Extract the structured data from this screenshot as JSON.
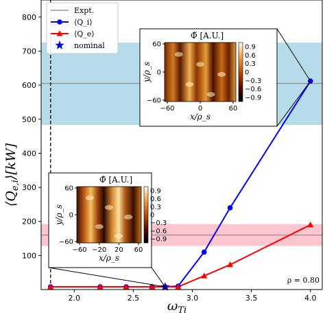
{
  "chart_data": {
    "type": "line",
    "ylabel": "⟨Q_e,i⟩[kW]",
    "xlabel": "ω_Ti",
    "xlim": [
      1.72,
      4.1
    ],
    "ylim": [
      0,
      850
    ],
    "x_ticks": [
      2.0,
      2.5,
      3.0,
      3.5,
      4.0
    ],
    "x_tick_labels": [
      "2.0",
      "2.5",
      "3.0",
      "3.5",
      "4.0"
    ],
    "y_ticks": [
      100,
      200,
      300,
      400,
      500,
      600,
      700,
      800
    ],
    "y_tick_labels": [
      "100",
      "200",
      "300",
      "400",
      "500",
      "600",
      "700",
      "800"
    ],
    "annotation": "ρ = 0.80",
    "nominal_x_line": 1.8,
    "bands": [
      {
        "name": "Expt. Qi",
        "center": 605,
        "low": 483,
        "high": 725,
        "color": "#add8e6"
      },
      {
        "name": "Expt. Qe",
        "center": 160,
        "low": 128,
        "high": 192,
        "color": "#ffc0cb"
      }
    ],
    "legend": {
      "location": "top-left",
      "entries": [
        {
          "label": "Expt.",
          "kind": "line",
          "color": "#808080"
        },
        {
          "label": "⟨Q_i⟩",
          "kind": "line-marker",
          "marker": "circle",
          "color": "#0000ff"
        },
        {
          "label": "⟨Q_e⟩",
          "kind": "line-marker",
          "marker": "triangle",
          "color": "#ff0000"
        },
        {
          "label": "nominal",
          "kind": "marker",
          "marker": "star",
          "color": "#0000cd"
        }
      ]
    },
    "series": [
      {
        "name": "⟨Q_i⟩",
        "color": "#0000ff",
        "marker": "circle",
        "x": [
          1.8,
          2.22,
          2.44,
          2.66,
          2.77,
          2.88,
          3.1,
          3.32,
          4.0
        ],
        "y": [
          8,
          8,
          8,
          8,
          8,
          10,
          110,
          240,
          612
        ]
      },
      {
        "name": "⟨Q_e⟩",
        "color": "#ff0000",
        "marker": "triangle",
        "x": [
          1.8,
          2.22,
          2.44,
          2.66,
          2.77,
          2.88,
          3.1,
          3.32,
          4.0
        ],
        "y": [
          8,
          8,
          8,
          8,
          8,
          8,
          40,
          73,
          190
        ]
      },
      {
        "name": "nominal",
        "color": "#0000cd",
        "marker": "star",
        "x": [
          2.77
        ],
        "y": [
          8
        ]
      }
    ],
    "insets": [
      {
        "title": "Φ̃ [A.U.]",
        "xlabel": "x/ρ_s",
        "ylabel": "y/ρ_s",
        "x_tick_labels": [
          "−60",
          "0",
          "60"
        ],
        "y_tick_labels": [
          "60",
          "0",
          "−60"
        ],
        "colorbar_ticks": [
          "0.9",
          "0.6",
          "0.3",
          "0",
          "−0.3",
          "−0.6",
          "−0.9"
        ],
        "points_to": {
          "x": 4.0,
          "y": 612
        }
      },
      {
        "title": "Φ̃ [A.U.]",
        "xlabel": "x/ρ_s",
        "ylabel": "y/ρ_s",
        "x_tick_labels": [
          "−60",
          "−20",
          "20",
          "60"
        ],
        "y_tick_labels": [
          "60",
          "0",
          "−60"
        ],
        "colorbar_ticks": [
          "0.9",
          "0.6",
          "0.3",
          "0",
          "−0.3",
          "−0.6",
          "−0.9"
        ],
        "points_to": {
          "x": 2.77,
          "y": 8
        }
      }
    ]
  }
}
